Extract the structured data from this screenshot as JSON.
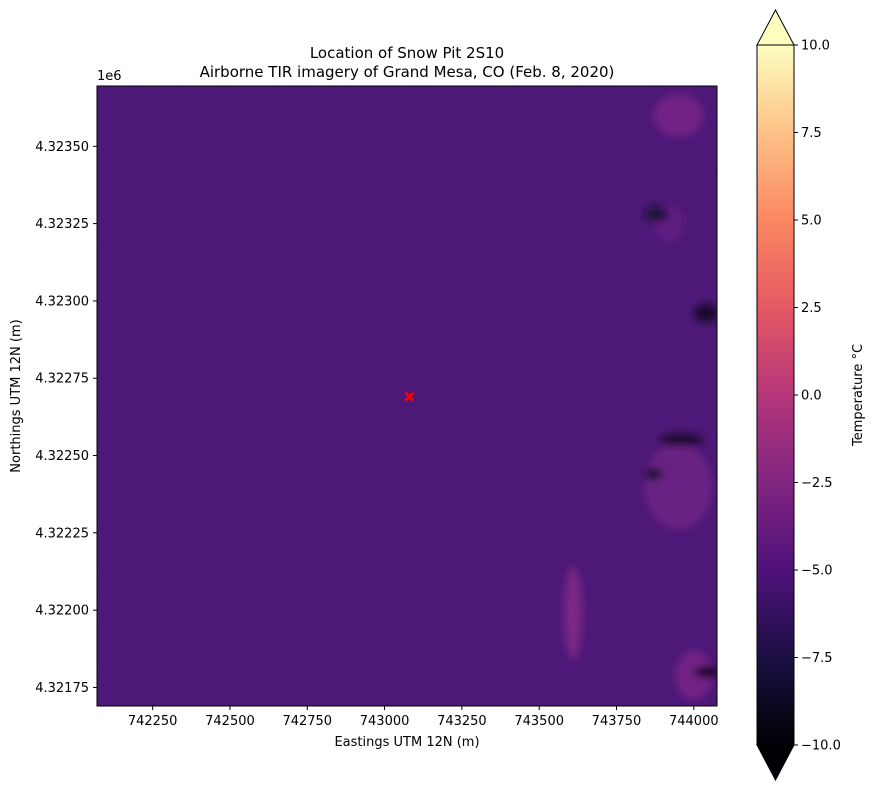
{
  "chart_data": {
    "type": "heatmap",
    "title_line1": "Location of Snow Pit 2S10",
    "title_line2": "Airborne TIR imagery of Grand Mesa, CO (Feb. 8, 2020)",
    "xlabel": "Eastings UTM 12N (m)",
    "ylabel": "Northings UTM 12N (m)",
    "y_offset_label": "1e6",
    "x_ticks": [
      742250,
      742500,
      742750,
      743000,
      743250,
      743500,
      743750,
      744000
    ],
    "x_tick_labels": [
      "742250",
      "742500",
      "742750",
      "743000",
      "743250",
      "743500",
      "743750",
      "744000"
    ],
    "xlim": [
      742070,
      744075
    ],
    "y_ticks": [
      4321750,
      4322000,
      4322250,
      4322500,
      4322750,
      4323000,
      4323250,
      4323500
    ],
    "y_tick_labels": [
      "4.32175",
      "4.32200",
      "4.32225",
      "4.32250",
      "4.32275",
      "4.32300",
      "4.32325",
      "4.32350"
    ],
    "ylim": [
      4321690,
      4323695
    ],
    "colormap": "magma",
    "colorbar": {
      "label": "Temperature °C",
      "vmin": -10.0,
      "vmax": 10.0,
      "extend": "both",
      "ticks": [
        -10.0,
        -7.5,
        -5.0,
        -2.5,
        0.0,
        2.5,
        5.0,
        7.5,
        10.0
      ],
      "tick_labels": [
        "−10.0",
        "−7.5",
        "−5.0",
        "−2.5",
        "0.0",
        "2.5",
        "5.0",
        "7.5",
        "10.0"
      ]
    },
    "background_temperature": -5.5,
    "marker": {
      "x": 743080,
      "y": 4322690,
      "symbol": "x",
      "color": "#ff0000"
    },
    "warm_regions": [
      {
        "x": 743950,
        "y": 4323600,
        "rx": 80,
        "ry": 70,
        "value": -3.5
      },
      {
        "x": 743950,
        "y": 4322400,
        "rx": 110,
        "ry": 140,
        "value": -4.0
      },
      {
        "x": 743610,
        "y": 4321990,
        "rx": 30,
        "ry": 150,
        "value": -3.0
      },
      {
        "x": 744000,
        "y": 4321790,
        "rx": 60,
        "ry": 80,
        "value": -3.5
      },
      {
        "x": 743920,
        "y": 4323250,
        "rx": 50,
        "ry": 60,
        "value": -4.5
      }
    ],
    "cold_regions": [
      {
        "x": 743960,
        "y": 4322550,
        "rx": 70,
        "ry": 20,
        "value": -9.0
      },
      {
        "x": 743880,
        "y": 4323280,
        "rx": 40,
        "ry": 25,
        "value": -8.5
      },
      {
        "x": 744040,
        "y": 4322960,
        "rx": 40,
        "ry": 30,
        "value": -9.0
      },
      {
        "x": 744040,
        "y": 4321800,
        "rx": 40,
        "ry": 20,
        "value": -9.5
      },
      {
        "x": 743870,
        "y": 4322440,
        "rx": 30,
        "ry": 20,
        "value": -8.5
      }
    ]
  }
}
